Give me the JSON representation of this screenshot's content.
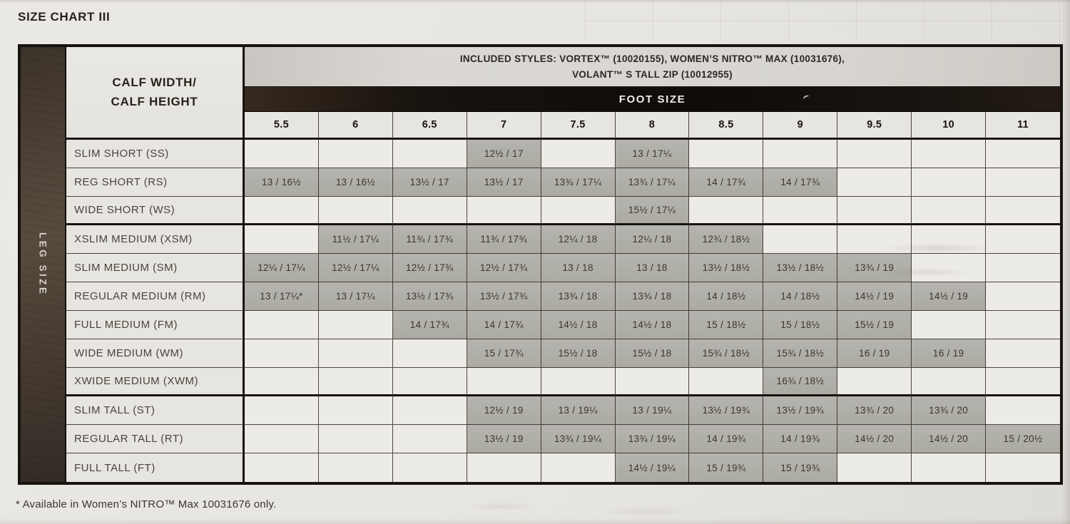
{
  "title": "SIZE CHART III",
  "footnote": "* Available in Women’s NITRO™ Max 10031676 only.",
  "colors": {
    "table_border": "#17130f",
    "foot_size_bar": "#120f0c",
    "leg_size_band_brown": "#4a3f34",
    "filled_cell_gray": "#b0afa8",
    "empty_cell": "#edebe6",
    "page_background": "#e6e4df"
  },
  "table": {
    "corner_line1": "CALF WIDTH/",
    "corner_line2": "CALF HEIGHT",
    "included_styles_line1": "INCLUDED STYLES: VORTEX™ (10020155), WOMEN’S NITRO™ MAX (10031676),",
    "included_styles_line2": "VOLANT™ S TALL ZIP (10012955)",
    "foot_size_label": "FOOT SIZE",
    "leg_size_label": "LEG SIZE",
    "foot_sizes": [
      "5.5",
      "6",
      "6.5",
      "7",
      "7.5",
      "8",
      "8.5",
      "9",
      "9.5",
      "10",
      "11"
    ],
    "rows": [
      {
        "label": "SLIM SHORT (SS)",
        "cells": [
          "",
          "",
          "",
          "12½ / 17",
          "",
          "13 / 17¼",
          "",
          "",
          "",
          "",
          ""
        ]
      },
      {
        "label": "REG SHORT (RS)",
        "cells": [
          "13 / 16½",
          "13 / 16½",
          "13½ / 17",
          "13½ / 17",
          "13¾ / 17¼",
          "13¾ / 17¼",
          "14 / 17¾",
          "14 / 17¾",
          "",
          "",
          ""
        ]
      },
      {
        "label": "WIDE SHORT (WS)",
        "group_end": true,
        "cells": [
          "",
          "",
          "",
          "",
          "",
          "15½ / 17¼",
          "",
          "",
          "",
          "",
          ""
        ]
      },
      {
        "label": "XSLIM MEDIUM (XSM)",
        "cells": [
          "",
          "11½ / 17¼",
          "11¾ / 17¾",
          "11¾ / 17¾",
          "12¼ / 18",
          "12¼ / 18",
          "12¾ / 18½",
          "",
          "",
          "",
          ""
        ]
      },
      {
        "label": "SLIM MEDIUM (SM)",
        "cells": [
          "12¼ / 17¼",
          "12½ / 17¼",
          "12½ / 17¾",
          "12½ / 17¾",
          "13 / 18",
          "13 / 18",
          "13½ / 18½",
          "13½ / 18½",
          "13¾ / 19",
          "",
          ""
        ]
      },
      {
        "label": "REGULAR MEDIUM (RM)",
        "cells": [
          "13 / 17¼*",
          "13 / 17¼",
          "13½ / 17¾",
          "13½ / 17¾",
          "13¾ / 18",
          "13¾ / 18",
          "14 / 18½",
          "14 / 18½",
          "14½ / 19",
          "14½ / 19",
          ""
        ]
      },
      {
        "label": "FULL MEDIUM (FM)",
        "cells": [
          "",
          "",
          "14 / 17¾",
          "14 / 17¾",
          "14½ / 18",
          "14½ / 18",
          "15 / 18½",
          "15 / 18½",
          "15½ / 19",
          "",
          ""
        ]
      },
      {
        "label": "WIDE MEDIUM (WM)",
        "cells": [
          "",
          "",
          "",
          "15 / 17¾",
          "15½ / 18",
          "15½ / 18",
          "15¾ / 18½",
          "15¾ / 18½",
          "16 / 19",
          "16 / 19",
          ""
        ]
      },
      {
        "label": "XWIDE MEDIUM (XWM)",
        "group_end": true,
        "cells": [
          "",
          "",
          "",
          "",
          "",
          "",
          "",
          "16¾ / 18½",
          "",
          "",
          ""
        ]
      },
      {
        "label": "SLIM TALL (ST)",
        "cells": [
          "",
          "",
          "",
          "12½ / 19",
          "13 / 19¼",
          "13 / 19¼",
          "13½ / 19¾",
          "13½ / 19¾",
          "13¾ / 20",
          "13¾ / 20",
          ""
        ]
      },
      {
        "label": "REGULAR TALL (RT)",
        "cells": [
          "",
          "",
          "",
          "13½ / 19",
          "13¾ / 19¼",
          "13¾ / 19¼",
          "14 / 19¾",
          "14 / 19¾",
          "14½ / 20",
          "14½ / 20",
          "15 / 20½"
        ]
      },
      {
        "label": "FULL TALL (FT)",
        "cells": [
          "",
          "",
          "",
          "",
          "",
          "14½ / 19¼",
          "15 / 19¾",
          "15 / 19¾",
          "",
          "",
          ""
        ]
      }
    ]
  }
}
